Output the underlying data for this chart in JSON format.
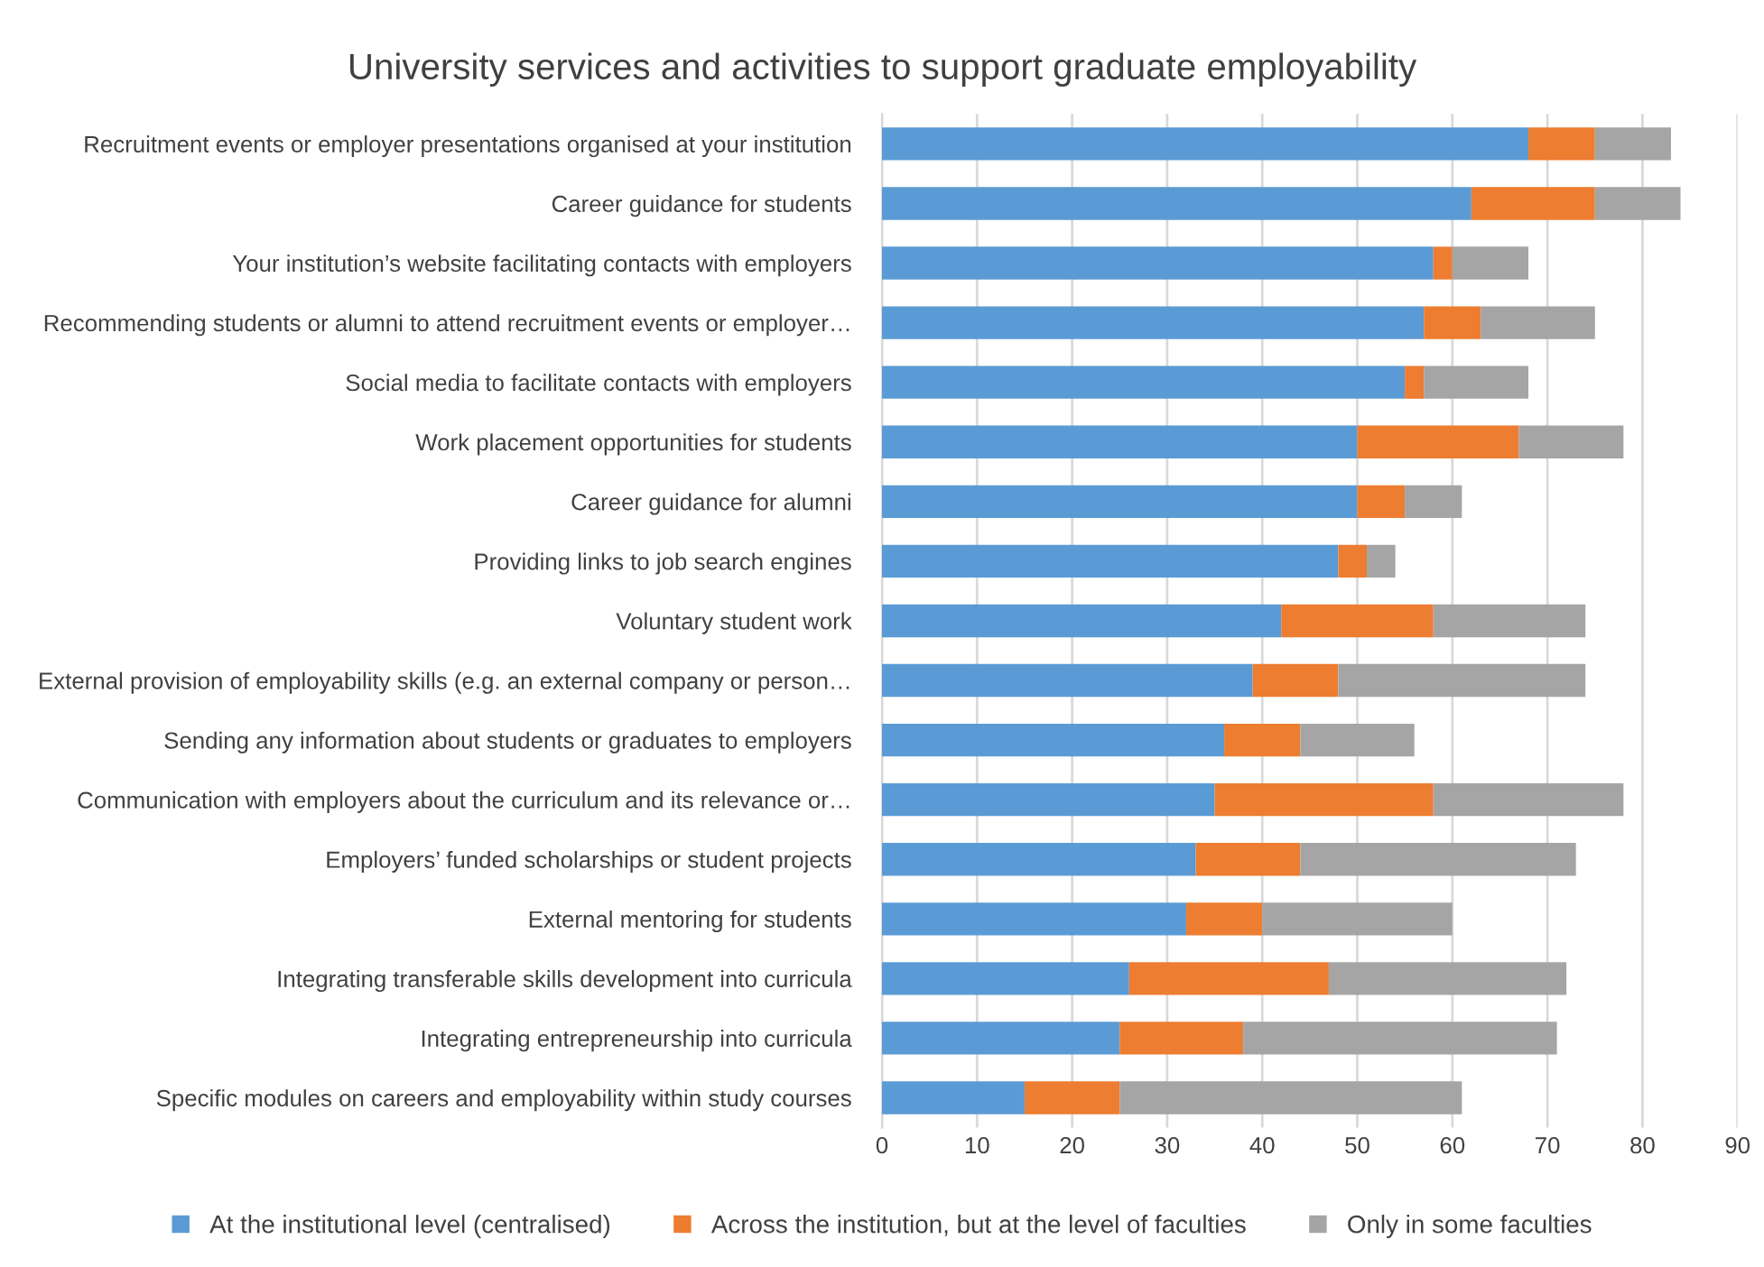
{
  "chart_data": {
    "type": "bar",
    "orientation": "horizontal",
    "stacked": true,
    "title": "University services and activities to support graduate employability",
    "categories": [
      "Recruitment events or employer presentations organised at your institution",
      "Career guidance for students",
      "Your institution’s website facilitating contacts with employers",
      "Recommending students or alumni to attend recruitment events or employer…",
      "Social media to facilitate contacts with employers",
      "Work placement opportunities for students",
      "Career guidance for alumni",
      "Providing links to job search engines",
      "Voluntary student work",
      "External provision of employability skills (e.g. an external company or person…",
      "Sending any information about students or graduates to employers",
      "Communication with employers about the curriculum and its relevance or…",
      "Employers’ funded scholarships or student projects",
      "External mentoring for students",
      "Integrating transferable skills development into curricula",
      "Integrating entrepreneurship into curricula",
      "Specific modules on careers and employability within study courses"
    ],
    "series": [
      {
        "name": "At the institutional level (centralised)",
        "color": "#5b9bd5",
        "values": [
          68,
          62,
          58,
          57,
          55,
          50,
          50,
          48,
          42,
          39,
          36,
          35,
          33,
          32,
          26,
          25,
          15
        ]
      },
      {
        "name": "Across the institution, but at the level of faculties",
        "color": "#ed7d31",
        "values": [
          7,
          13,
          2,
          6,
          2,
          17,
          5,
          3,
          16,
          9,
          8,
          23,
          11,
          8,
          21,
          13,
          10
        ]
      },
      {
        "name": "Only in some faculties",
        "color": "#a5a5a5",
        "values": [
          8,
          9,
          8,
          12,
          11,
          11,
          6,
          3,
          16,
          26,
          12,
          20,
          29,
          20,
          25,
          33,
          36
        ]
      }
    ],
    "xlim": [
      0,
      90
    ],
    "xticks": [
      0,
      10,
      20,
      30,
      40,
      50,
      60,
      70,
      80,
      90
    ],
    "grid": "x",
    "legend": "bottom"
  }
}
